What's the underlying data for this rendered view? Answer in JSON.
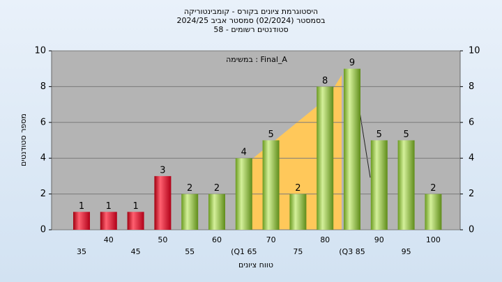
{
  "chart_data": {
    "type": "bar",
    "title": [
      "היסטוגרמת ציונים בקורס - קומבינטוריקה",
      "בסמסטר  (02/2024)  סמסטר אביב 2024/25",
      "סטודנטים רשומים - 58"
    ],
    "annotation": "במשימה : Final_A",
    "x_label": "טווח ציונים",
    "y_label": "מספר סטודנטים",
    "categories": [
      "35",
      "40",
      "45",
      "50",
      "55",
      "60",
      "(Q1 65",
      "70",
      "75",
      "80",
      "(Q3 85",
      "90",
      "95",
      "100"
    ],
    "values": [
      1,
      1,
      1,
      3,
      2,
      2,
      4,
      5,
      2,
      8,
      9,
      5,
      5,
      2
    ],
    "colors": [
      "red",
      "red",
      "red",
      "red",
      "green",
      "green",
      "green",
      "green",
      "green",
      "green",
      "green",
      "green",
      "green",
      "green"
    ],
    "ylim": [
      0,
      10
    ],
    "yticks": [
      0,
      2,
      4,
      6,
      8,
      10
    ],
    "grid": true
  }
}
